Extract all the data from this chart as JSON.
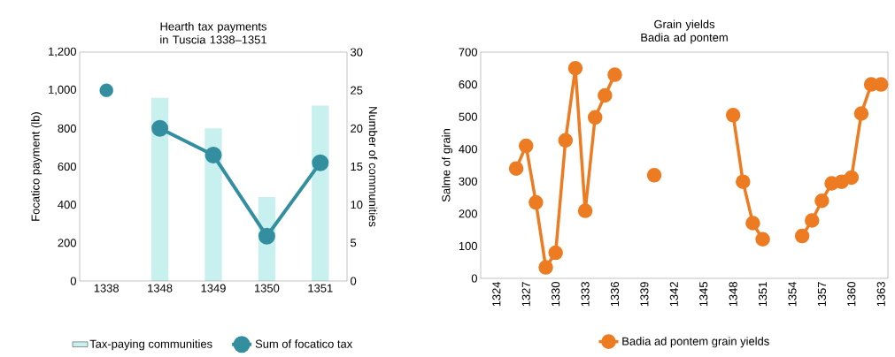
{
  "chart_data": [
    {
      "type": "bar",
      "title": "Hearth tax payments in Tuscia 1338–1351",
      "ylabel": "Focatico payment (lb)",
      "y2label": "Number of communities",
      "categories": [
        "1338",
        "1348",
        "1349",
        "1350",
        "1351"
      ],
      "ylim": [
        0,
        1200
      ],
      "yticks": [
        0,
        200,
        400,
        600,
        800,
        {
          "value": 1000,
          "label": "1,000"
        },
        {
          "value": 1200,
          "label": "1,200"
        }
      ],
      "y2lim": [
        0,
        30
      ],
      "y2ticks": [
        0,
        5,
        10,
        15,
        20,
        25,
        30
      ],
      "legend": "bottom",
      "marker": "circle",
      "series": [
        {
          "name": "Tax-paying communities",
          "type": "bar",
          "axis": "y2",
          "color": "#c8f0ee",
          "values": [
            null,
            24,
            20,
            11,
            23
          ]
        },
        {
          "name": "Sum of focatico tax",
          "type": "line",
          "color": "#338fa0",
          "values": [
            null,
            800,
            660,
            235,
            620
          ]
        },
        {
          "type": "scatter",
          "color": "#338fa0",
          "values": [
            1000,
            null,
            null,
            null,
            null
          ]
        }
      ]
    },
    {
      "type": "line",
      "title": "Grain yields Badia ad pontem",
      "ylabel": "Salme of grain",
      "x": [
        1326,
        1327,
        1328,
        1329,
        1330,
        1331,
        1332,
        1333,
        1334,
        1335,
        1336,
        1337,
        1338,
        1339,
        1340,
        1341,
        1342,
        1343,
        1344,
        1345,
        1346,
        1347,
        1348,
        1349,
        1350,
        1351,
        1352,
        1353,
        1354,
        1355,
        1356,
        1357,
        1358,
        1359,
        1360,
        1361,
        1362,
        1363
      ],
      "xlim": [
        1322.4,
        1363.7
      ],
      "xticks": [
        1324,
        1327,
        1330,
        1333,
        1336,
        1339,
        1342,
        1345,
        1348,
        1351,
        1354,
        1357,
        1360,
        1363
      ],
      "ylim": [
        0,
        700
      ],
      "yticks": [
        0,
        100,
        200,
        300,
        400,
        500,
        600,
        700
      ],
      "legend": "bottom",
      "marker": "circle",
      "series": [
        {
          "name": "Badia ad pontem grain yields",
          "color": "#ec7b22",
          "values": [
            340,
            410,
            235,
            34,
            79,
            427,
            650,
            209,
            498,
            566,
            630,
            null,
            null,
            null,
            319,
            null,
            null,
            null,
            null,
            null,
            null,
            null,
            505,
            299,
            171,
            121,
            null,
            null,
            null,
            131,
            179,
            240,
            294,
            299,
            312,
            510,
            600,
            600
          ]
        }
      ]
    }
  ]
}
